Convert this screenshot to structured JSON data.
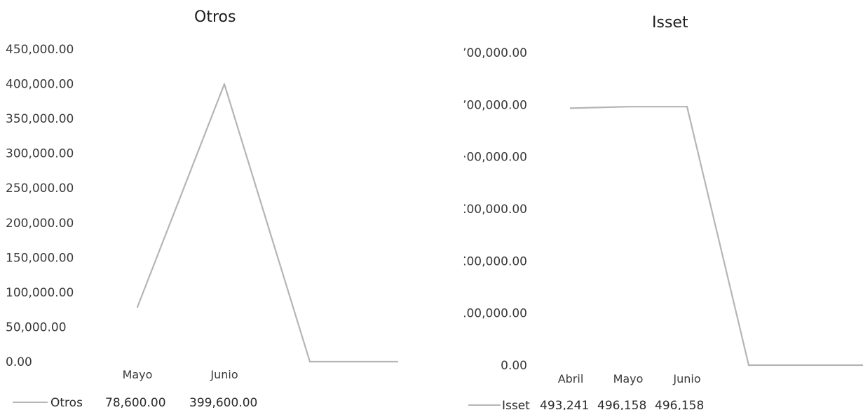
{
  "chart_data": [
    {
      "type": "line",
      "title": "Otros",
      "categories": [
        "Mayo",
        "Junio",
        ""
      ],
      "series": [
        {
          "name": "Otros",
          "values": [
            78600,
            399600,
            0
          ],
          "value_labels": [
            "78,600.00",
            "399,600.00"
          ]
        }
      ],
      "y_tick_labels": [
        "450,000.00",
        "400,000.00",
        "350,000.00",
        "300,000.00",
        "250,000.00",
        "200,000.00",
        "150,000.00",
        "100,000.00",
        "50,000.00",
        "0.00"
      ],
      "ylim": [
        0,
        450000
      ],
      "grid": false,
      "legend": "data table below axis",
      "line_color": "#b5b5b5"
    },
    {
      "type": "line",
      "title": "Isset",
      "categories": [
        "Abril",
        "Mayo",
        "Junio",
        ""
      ],
      "series": [
        {
          "name": "Isset",
          "values": [
            493241,
            496158,
            496158,
            0
          ],
          "value_labels": [
            "493,241",
            "496,158",
            "496,158"
          ]
        }
      ],
      "y_tick_labels": [
        "ʼ00,000.00",
        "ʼ00,000.00",
        "·00,000.00",
        "⁚00,000.00",
        "⁚00,000.00",
        ".00,000.00",
        "0.00"
      ],
      "ylim": [
        0,
        600000
      ],
      "grid": false,
      "legend": "data table below axis",
      "line_color": "#b5b5b5"
    }
  ]
}
